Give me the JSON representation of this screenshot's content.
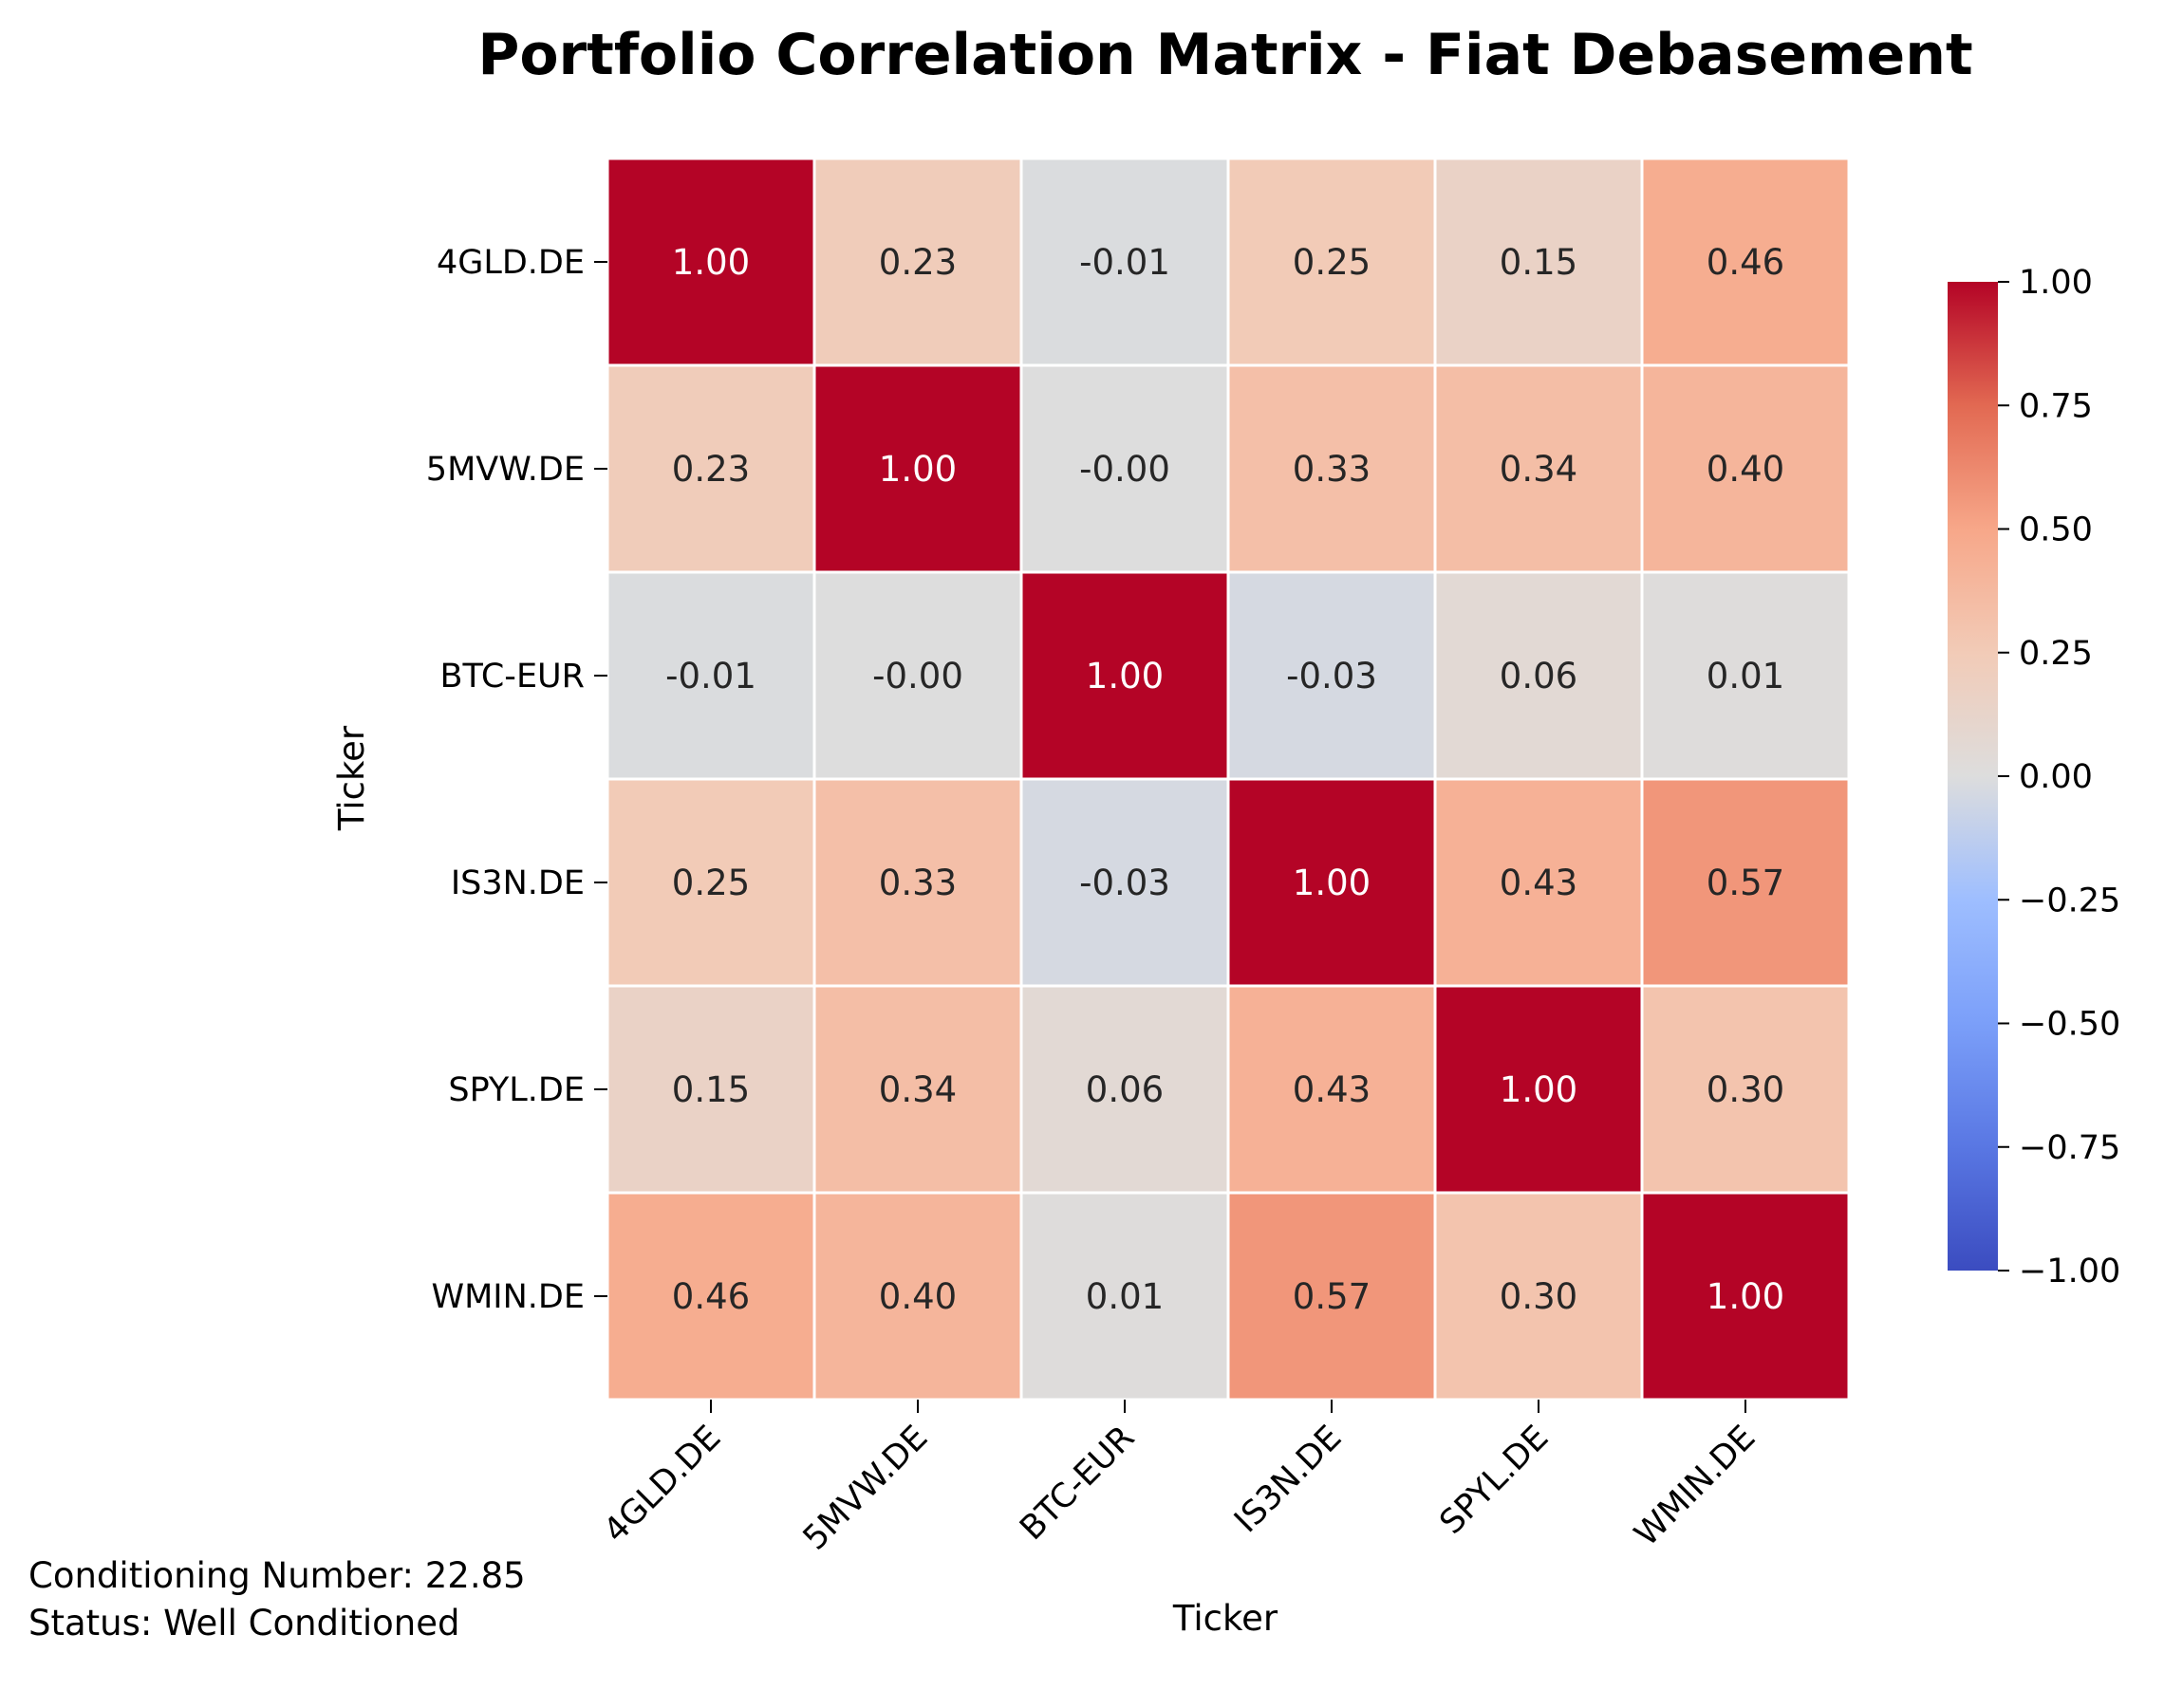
{
  "chart_data": {
    "type": "heatmap",
    "title": "Portfolio Correlation Matrix - Fiat Debasement",
    "xlabel": "Ticker",
    "ylabel": "Ticker",
    "x_categories": [
      "4GLD.DE",
      "5MVW.DE",
      "BTC-EUR",
      "IS3N.DE",
      "SPYL.DE",
      "WMIN.DE"
    ],
    "y_categories": [
      "4GLD.DE",
      "5MVW.DE",
      "BTC-EUR",
      "IS3N.DE",
      "SPYL.DE",
      "WMIN.DE"
    ],
    "values": [
      [
        1.0,
        0.23,
        -0.01,
        0.25,
        0.15,
        0.46
      ],
      [
        0.23,
        1.0,
        -0.0,
        0.33,
        0.34,
        0.4
      ],
      [
        -0.01,
        -0.0,
        1.0,
        -0.03,
        0.06,
        0.01
      ],
      [
        0.25,
        0.33,
        -0.03,
        1.0,
        0.43,
        0.57
      ],
      [
        0.15,
        0.34,
        0.06,
        0.43,
        1.0,
        0.3
      ],
      [
        0.46,
        0.4,
        0.01,
        0.57,
        0.3,
        1.0
      ]
    ],
    "value_labels": [
      [
        "1.00",
        "0.23",
        "-0.01",
        "0.25",
        "0.15",
        "0.46"
      ],
      [
        "0.23",
        "1.00",
        "-0.00",
        "0.33",
        "0.34",
        "0.40"
      ],
      [
        "-0.01",
        "-0.00",
        "1.00",
        "-0.03",
        "0.06",
        "0.01"
      ],
      [
        "0.25",
        "0.33",
        "-0.03",
        "1.00",
        "0.43",
        "0.57"
      ],
      [
        "0.15",
        "0.34",
        "0.06",
        "0.43",
        "1.00",
        "0.30"
      ],
      [
        "0.46",
        "0.40",
        "0.01",
        "0.57",
        "0.30",
        "1.00"
      ]
    ],
    "colormap": "coolwarm",
    "vmin": -1.0,
    "vmax": 1.0,
    "colorbar_ticks": [
      "1.00",
      "0.75",
      "0.50",
      "0.25",
      "0.00",
      "−0.25",
      "−0.50",
      "−0.75",
      "−1.00"
    ],
    "colorbar_tick_values": [
      1.0,
      0.75,
      0.5,
      0.25,
      0.0,
      -0.25,
      -0.5,
      -0.75,
      -1.0
    ],
    "colorbar_colors": {
      "min": "#3b4cc0",
      "mid": "#dddddd",
      "max": "#b40426"
    },
    "cell_border_color": "#ffffff"
  },
  "annotation": {
    "conditioning_number": "Conditioning Number: 22.85",
    "status": "Status: Well Conditioned"
  }
}
